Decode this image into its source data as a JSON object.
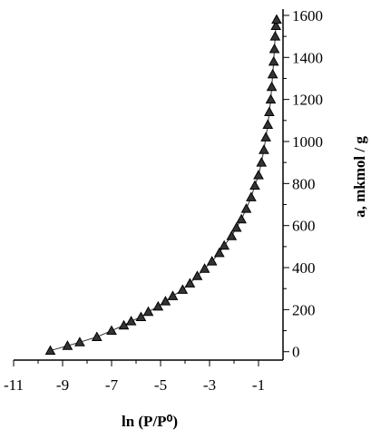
{
  "chart_data": {
    "type": "line",
    "xlabel": "ln (P/P⁰)",
    "ylabel": "a,  mkmol / g",
    "series": [
      {
        "color": "#333333",
        "x": [
          -9.5,
          -8.8,
          -8.3,
          -7.6,
          -7.0,
          -6.5,
          -6.2,
          -5.8,
          -5.5,
          -5.1,
          -4.8,
          -4.5,
          -4.1,
          -3.8,
          -3.5,
          -3.2,
          -2.9,
          -2.6,
          -2.4,
          -2.1,
          -1.9,
          -1.7,
          -1.5,
          -1.3,
          -1.15,
          -1.0,
          -0.88,
          -0.78,
          -0.7,
          -0.62,
          -0.56,
          -0.5,
          -0.46,
          -0.42,
          -0.38,
          -0.35,
          -0.32,
          -0.29,
          -0.26
        ],
        "values": [
          5,
          28,
          45,
          70,
          100,
          125,
          145,
          165,
          190,
          215,
          240,
          265,
          295,
          325,
          360,
          395,
          430,
          470,
          505,
          550,
          590,
          630,
          680,
          735,
          790,
          840,
          900,
          960,
          1020,
          1080,
          1140,
          1200,
          1260,
          1320,
          1380,
          1440,
          1500,
          1550,
          1580
        ]
      }
    ],
    "xlim": [
      -11,
      0
    ],
    "xticks": [
      -11,
      -9,
      -7,
      -5,
      -3,
      -1
    ],
    "ylim": [
      -40,
      1630
    ],
    "yticks": [
      0,
      200,
      400,
      600,
      800,
      1000,
      1200,
      1400,
      1600
    ]
  }
}
